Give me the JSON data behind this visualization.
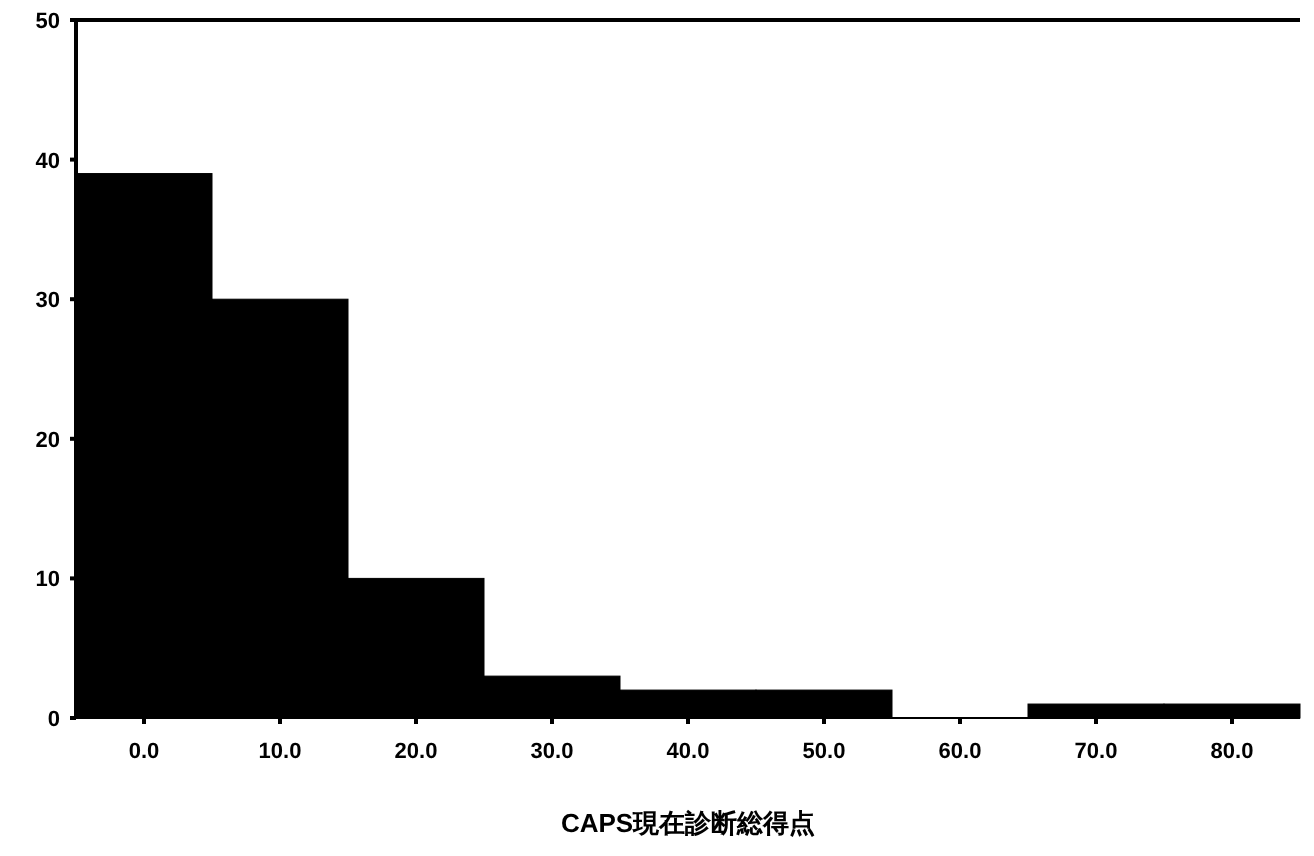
{
  "chart_data": {
    "type": "histogram",
    "xlabel": "CAPS現在診断総得点",
    "bins": [
      -5,
      5,
      15,
      25,
      35,
      45,
      55,
      65,
      75,
      85
    ],
    "values": [
      39,
      30,
      10,
      3,
      2,
      2,
      0,
      1,
      1
    ],
    "color": "#000000",
    "xlim": [
      -5,
      85
    ],
    "ylim": [
      0,
      50
    ],
    "xticks": [
      {
        "value": 0,
        "label": "0.0"
      },
      {
        "value": 10,
        "label": "10.0"
      },
      {
        "value": 20,
        "label": "20.0"
      },
      {
        "value": 30,
        "label": "30.0"
      },
      {
        "value": 40,
        "label": "40.0"
      },
      {
        "value": 50,
        "label": "50.0"
      },
      {
        "value": 60,
        "label": "60.0"
      },
      {
        "value": 70,
        "label": "70.0"
      },
      {
        "value": 80,
        "label": "80.0"
      }
    ],
    "yticks": [
      0,
      10,
      20,
      30,
      40,
      50
    ],
    "grid": false
  }
}
